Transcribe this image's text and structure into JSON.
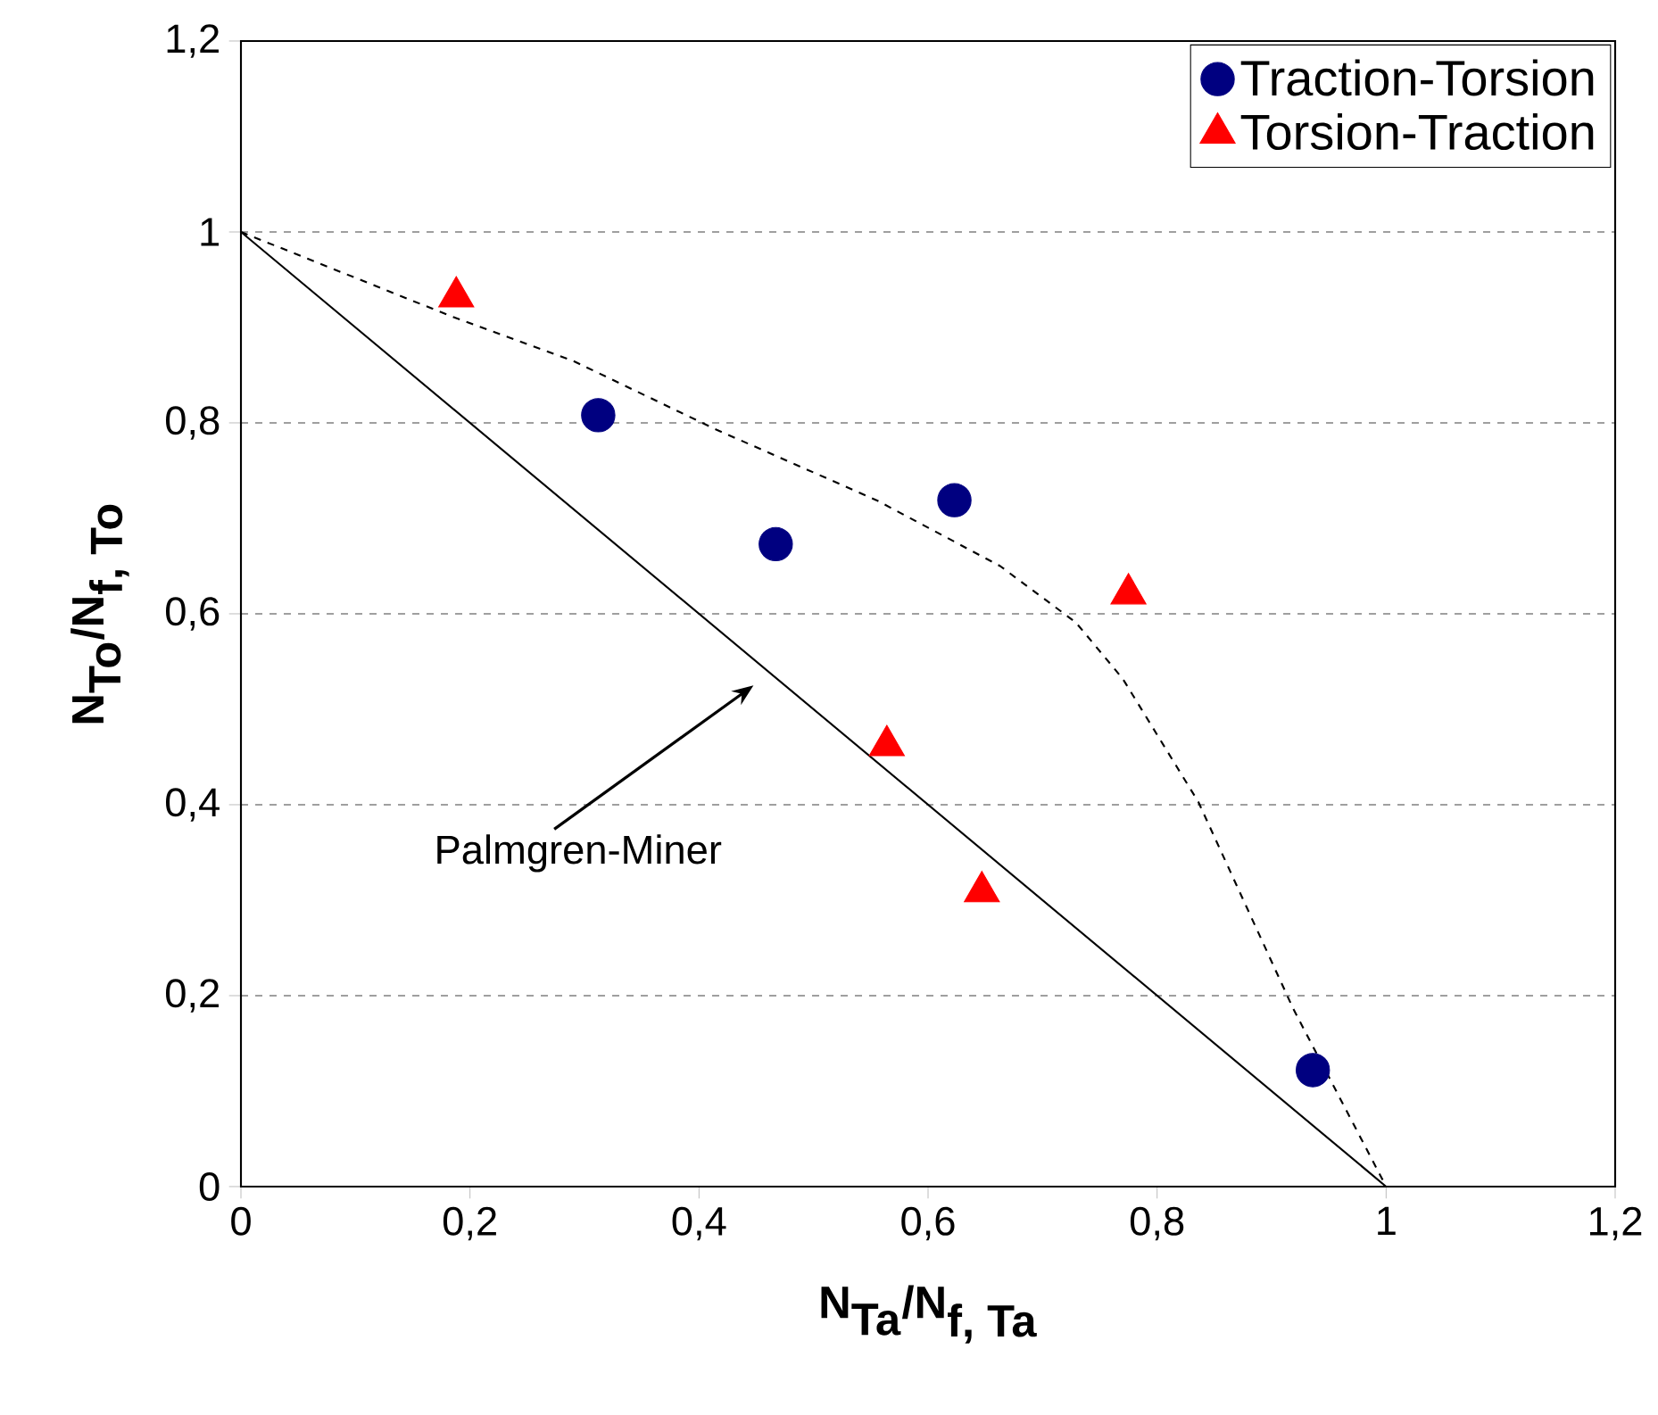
{
  "chart_data": {
    "type": "scatter",
    "xlabel": "\\textbf{N}_{\\textbf{Ta}}\\textbf{/N}_{\\textbf{f, Ta}}",
    "ylabel": "\\textbf{N}_{\\textbf{To}}\\textbf{/N}_{\\textbf{f, To}}",
    "xlim": [
      0,
      1.2
    ],
    "ylim": [
      0,
      1.2
    ],
    "xticks": [
      0,
      {
        "value": 0.2,
        "label": "0,2"
      },
      {
        "value": 0.4,
        "label": "0,4"
      },
      {
        "value": 0.6,
        "label": "0,6"
      },
      {
        "value": 0.8,
        "label": "0,8"
      },
      1,
      {
        "value": 1.2,
        "label": "1,2"
      }
    ],
    "yticks": [
      0,
      {
        "value": 0.2,
        "label": "0,2"
      },
      {
        "value": 0.4,
        "label": "0,4"
      },
      {
        "value": 0.6,
        "label": "0,6"
      },
      {
        "value": 0.8,
        "label": "0,8"
      },
      1,
      {
        "value": 1.2,
        "label": "1,2"
      }
    ],
    "grid": "y",
    "legend": "top right",
    "series": [
      {
        "name": "Traction-Torsion",
        "marker": "circle",
        "color": "#000080",
        "x": [
          0.312,
          0.467,
          0.623,
          0.936
        ],
        "values": [
          0.808,
          0.673,
          0.719,
          0.122
        ]
      },
      {
        "name": "Torsion-Traction",
        "marker": "triangle",
        "color": "#ff0000",
        "x": [
          0.188,
          0.564,
          0.647,
          0.775
        ],
        "values": [
          0.932,
          0.462,
          0.309,
          0.621
        ]
      },
      {
        "type": "line",
        "marker": "none",
        "line_style": "solid",
        "color": "#000000",
        "x": [
          0,
          1
        ],
        "values": [
          1,
          0
        ]
      },
      {
        "type": "line",
        "marker": "none",
        "line_style": "dashed",
        "color": "#000000",
        "x": [
          0,
          0.183,
          0.29,
          0.415,
          0.555,
          0.663,
          0.729,
          0.77,
          0.836,
          0.919,
          1
        ],
        "values": [
          1,
          0.912,
          0.865,
          0.793,
          0.719,
          0.65,
          0.591,
          0.532,
          0.403,
          0.186,
          0
        ]
      }
    ],
    "annotations": [
      "Palmgren-Miner"
    ]
  }
}
